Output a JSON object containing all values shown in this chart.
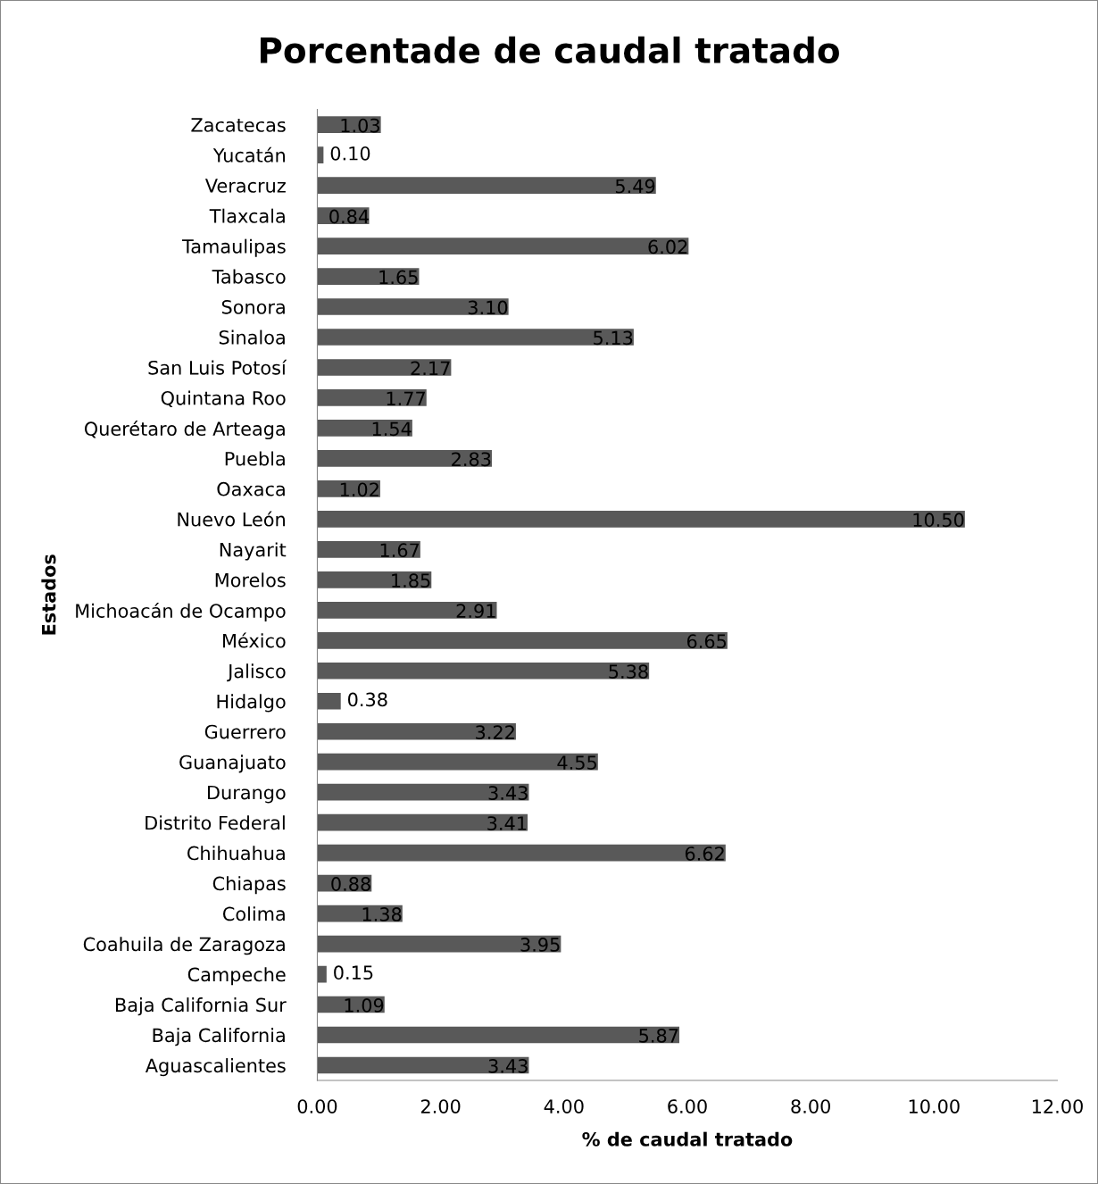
{
  "chart_data": {
    "type": "bar",
    "orientation": "horizontal",
    "title": "Porcentade de caudal tratado",
    "xlabel": "% de caudal tratado",
    "ylabel": "Estados",
    "categories": [
      "Zacatecas",
      "Yucatán",
      "Veracruz",
      "Tlaxcala",
      "Tamaulipas",
      "Tabasco",
      "Sonora",
      "Sinaloa",
      "San Luis Potosí",
      "Quintana Roo",
      "Querétaro de Arteaga",
      "Puebla",
      "Oaxaca",
      "Nuevo León",
      "Nayarit",
      "Morelos",
      "Michoacán de Ocampo",
      "México",
      "Jalisco",
      "Hidalgo",
      "Guerrero",
      "Guanajuato",
      "Durango",
      "Distrito Federal",
      "Chihuahua",
      "Chiapas",
      "Colima",
      "Coahuila de Zaragoza",
      "Campeche",
      "Baja California Sur",
      "Baja California",
      "Aguascalientes"
    ],
    "values": [
      1.03,
      0.1,
      5.49,
      0.84,
      6.02,
      1.65,
      3.1,
      5.13,
      2.17,
      1.77,
      1.54,
      2.83,
      1.02,
      10.5,
      1.67,
      1.85,
      2.91,
      6.65,
      5.38,
      0.38,
      3.22,
      4.55,
      3.43,
      3.41,
      6.62,
      0.88,
      1.38,
      3.95,
      0.15,
      1.09,
      5.87,
      3.43
    ],
    "value_labels": [
      "1.03",
      "0.10",
      "5.49",
      "0.84",
      "6.02",
      "1.65",
      "3.10",
      "5.13",
      "2.17",
      "1.77",
      "1.54",
      "2.83",
      "1.02",
      "10.50",
      "1.67",
      "1.85",
      "2.91",
      "6.65",
      "5.38",
      "0.38",
      "3.22",
      "4.55",
      "3.43",
      "3.41",
      "6.62",
      "0.88",
      "1.38",
      "3.95",
      "0.15",
      "1.09",
      "5.87",
      "3.43"
    ],
    "color": "#595959",
    "grid": false,
    "xlim": [
      0,
      12
    ],
    "xticks": [
      {
        "value": 0,
        "label": "0.00"
      },
      {
        "value": 2,
        "label": "2.00"
      },
      {
        "value": 4,
        "label": "4.00"
      },
      {
        "value": 6,
        "label": "6.00"
      },
      {
        "value": 8,
        "label": "8.00"
      },
      {
        "value": 10,
        "label": "10.00"
      },
      {
        "value": 12,
        "label": "12.00"
      }
    ]
  }
}
